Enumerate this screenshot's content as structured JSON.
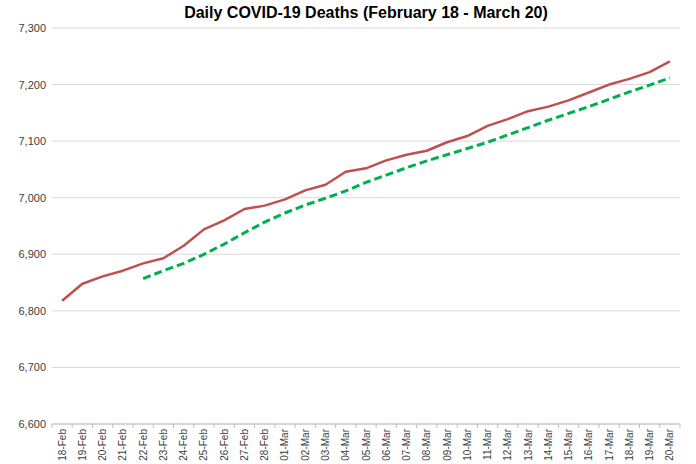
{
  "chart_data": {
    "type": "line",
    "title": "Daily COVID-19 Deaths (February 18 - March 20)",
    "categories": [
      "18-Feb",
      "19-Feb",
      "20-Feb",
      "21-Feb",
      "22-Feb",
      "23-Feb",
      "24-Feb",
      "25-Feb",
      "26-Feb",
      "27-Feb",
      "28-Feb",
      "01-Mar",
      "02-Mar",
      "03-Mar",
      "04-Mar",
      "05-Mar",
      "06-Mar",
      "07-Mar",
      "08-Mar",
      "09-Mar",
      "10-Mar",
      "11-Mar",
      "12-Mar",
      "13-Mar",
      "14-Mar",
      "15-Mar",
      "16-Mar",
      "17-Mar",
      "18-Mar",
      "19-Mar",
      "20-Mar"
    ],
    "series": [
      {
        "color": "#c0504d",
        "line_style": "solid",
        "values": [
          6818,
          6848,
          6861,
          6871,
          6884,
          6893,
          6915,
          6944,
          6960,
          6980,
          6986,
          6997,
          7013,
          7023,
          7046,
          7052,
          7066,
          7076,
          7083,
          7098,
          7109,
          7127,
          7139,
          7153,
          7161,
          7172,
          7186,
          7200,
          7210,
          7222,
          7241
        ]
      },
      {
        "color": "#00b050",
        "line_style": "dashed",
        "values": [
          null,
          null,
          null,
          null,
          6857,
          6871,
          6884,
          6900,
          6918,
          6938,
          6957,
          6973,
          6987,
          6999,
          7012,
          7027,
          7040,
          7053,
          7065,
          7076,
          7087,
          7098,
          7111,
          7124,
          7137,
          7149,
          7161,
          7174,
          7187,
          7199,
          7212
        ]
      }
    ],
    "ylim": [
      6600,
      7300
    ],
    "yticks": [
      {
        "value": 6600,
        "label": "6,600"
      },
      {
        "value": 6700,
        "label": "6,700"
      },
      {
        "value": 6800,
        "label": "6,800"
      },
      {
        "value": 6900,
        "label": "6,900"
      },
      {
        "value": 7000,
        "label": "7,000"
      },
      {
        "value": 7100,
        "label": "7,100"
      },
      {
        "value": 7200,
        "label": "7,200"
      },
      {
        "value": 7300,
        "label": "7,300"
      }
    ],
    "grid": true
  }
}
